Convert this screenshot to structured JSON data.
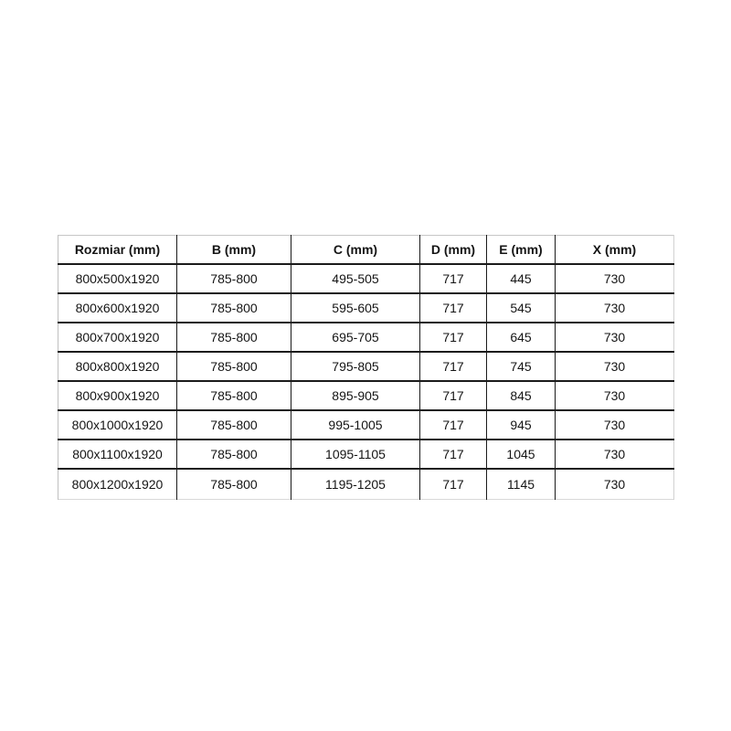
{
  "page": {
    "background_color": "#ffffff",
    "text_color": "#151515",
    "grid_color": "#1b1b1b",
    "outer_border_color": "#c6c6c6"
  },
  "chart_data": {
    "type": "table",
    "title": "",
    "columns": [
      "Rozmiar (mm)",
      "B (mm)",
      "C (mm)",
      "D (mm)",
      "E (mm)",
      "X (mm)"
    ],
    "rows": [
      [
        "800x500x1920",
        "785-800",
        "495-505",
        "717",
        "445",
        "730"
      ],
      [
        "800x600x1920",
        "785-800",
        "595-605",
        "717",
        "545",
        "730"
      ],
      [
        "800x700x1920",
        "785-800",
        "695-705",
        "717",
        "645",
        "730"
      ],
      [
        "800x800x1920",
        "785-800",
        "795-805",
        "717",
        "745",
        "730"
      ],
      [
        "800x900x1920",
        "785-800",
        "895-905",
        "717",
        "845",
        "730"
      ],
      [
        "800x1000x1920",
        "785-800",
        "995-1005",
        "717",
        "945",
        "730"
      ],
      [
        "800x1100x1920",
        "785-800",
        "1095-1105",
        "717",
        "1045",
        "730"
      ],
      [
        "800x1200x1920",
        "785-800",
        "1195-1205",
        "717",
        "1145",
        "730"
      ]
    ]
  }
}
